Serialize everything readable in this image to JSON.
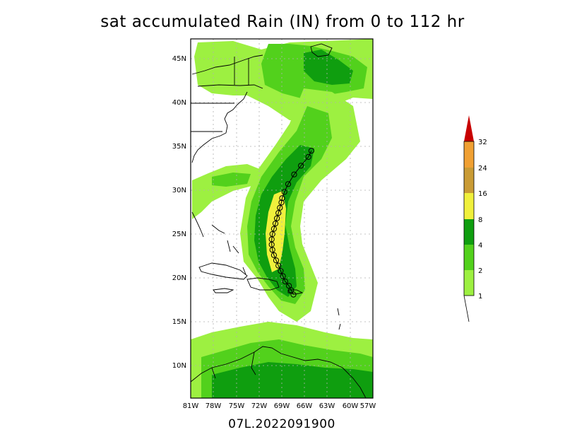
{
  "title": "sat accumulated Rain (IN) from 0 to 112 hr",
  "footer": "07L.2022091900",
  "colors": {
    "c1": "#9df041",
    "c2": "#52d11c",
    "c4": "#0f9e0f",
    "c8": "#f0f03c",
    "c16": "#c99b35",
    "c24": "#f0a033",
    "c32": "#c80000"
  },
  "colorbar": {
    "labels": [
      "1",
      "2",
      "4",
      "8",
      "16",
      "24",
      "32"
    ]
  },
  "axes": {
    "lat_labels": [
      "45N",
      "40N",
      "35N",
      "30N",
      "25N",
      "20N",
      "15N",
      "10N"
    ],
    "lon_labels": [
      "81W",
      "78W",
      "75W",
      "72W",
      "69W",
      "66W",
      "63W",
      "60W",
      "57W"
    ]
  },
  "track": [
    [
      -67.3,
      18.1
    ],
    [
      -67.6,
      18.6
    ],
    [
      -67.9,
      19.1
    ],
    [
      -68.4,
      19.6
    ],
    [
      -68.7,
      20.2
    ],
    [
      -69.0,
      20.8
    ],
    [
      -69.3,
      21.4
    ],
    [
      -69.6,
      22.0
    ],
    [
      -69.9,
      22.6
    ],
    [
      -70.1,
      23.2
    ],
    [
      -70.2,
      23.8
    ],
    [
      -70.2,
      24.4
    ],
    [
      -70.1,
      25.0
    ],
    [
      -69.9,
      25.6
    ],
    [
      -69.7,
      26.2
    ],
    [
      -69.5,
      26.8
    ],
    [
      -69.3,
      27.4
    ],
    [
      -69.1,
      28.0
    ],
    [
      -68.9,
      28.6
    ],
    [
      -68.8,
      29.1
    ],
    [
      -68.5,
      29.8
    ],
    [
      -68.0,
      30.7
    ],
    [
      -67.2,
      31.8
    ],
    [
      -66.3,
      32.8
    ],
    [
      -65.3,
      33.8
    ],
    [
      -64.9,
      34.5
    ]
  ]
}
